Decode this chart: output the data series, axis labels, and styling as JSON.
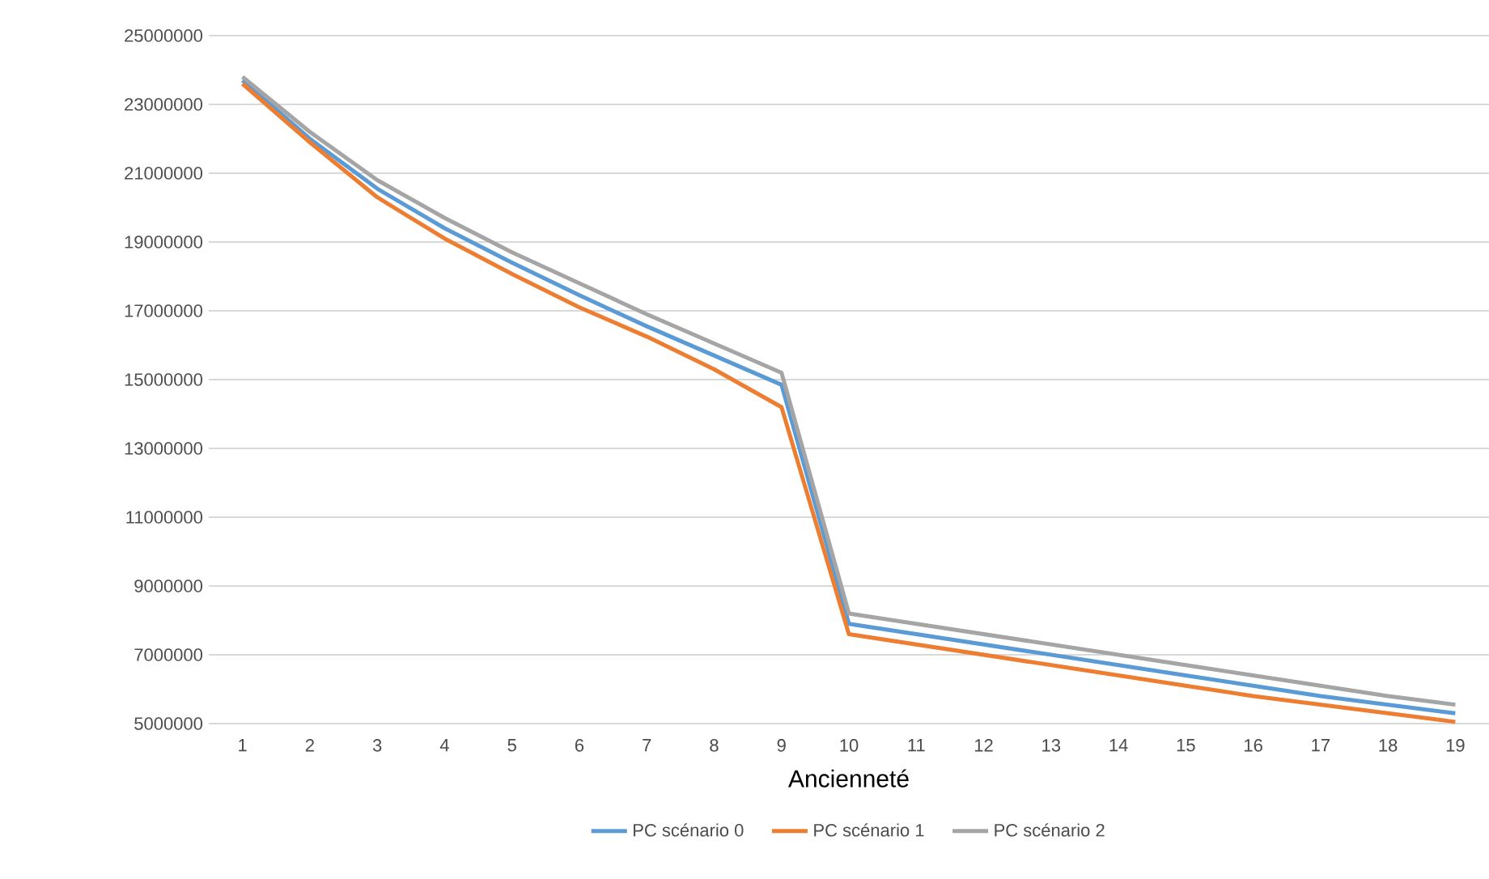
{
  "chart_data": {
    "type": "line",
    "xlabel": "Ancienneté",
    "categories": [
      "1",
      "2",
      "3",
      "4",
      "5",
      "6",
      "7",
      "8",
      "9",
      "10",
      "11",
      "12",
      "13",
      "14",
      "15",
      "16",
      "17",
      "18",
      "19"
    ],
    "series": [
      {
        "name": "PC scénario 0",
        "color": "#5b9bd5",
        "values": [
          23700000,
          22000000,
          20550000,
          19400000,
          18400000,
          17450000,
          16550000,
          15700000,
          14850000,
          7900000,
          7600000,
          7300000,
          7000000,
          6700000,
          6400000,
          6100000,
          5800000,
          5550000,
          5300000
        ]
      },
      {
        "name": "PC scénario 1",
        "color": "#ed7d31",
        "values": [
          23600000,
          21900000,
          20300000,
          19100000,
          18070000,
          17100000,
          16250000,
          15300000,
          14200000,
          7600000,
          7300000,
          7000000,
          6700000,
          6400000,
          6100000,
          5800000,
          5550000,
          5300000,
          5050000
        ]
      },
      {
        "name": "PC scénario 2",
        "color": "#a5a5a5",
        "values": [
          23800000,
          22200000,
          20800000,
          19700000,
          18700000,
          17800000,
          16900000,
          16050000,
          15200000,
          8200000,
          7900000,
          7600000,
          7300000,
          7000000,
          6700000,
          6400000,
          6100000,
          5800000,
          5550000
        ]
      }
    ],
    "ylim": [
      5000000,
      25000000
    ],
    "yticks": [
      5000000,
      7000000,
      9000000,
      11000000,
      13000000,
      15000000,
      17000000,
      19000000,
      21000000,
      23000000,
      25000000
    ],
    "grid": "y",
    "legend": "bottom",
    "marker": "none",
    "line_style": "solid"
  }
}
